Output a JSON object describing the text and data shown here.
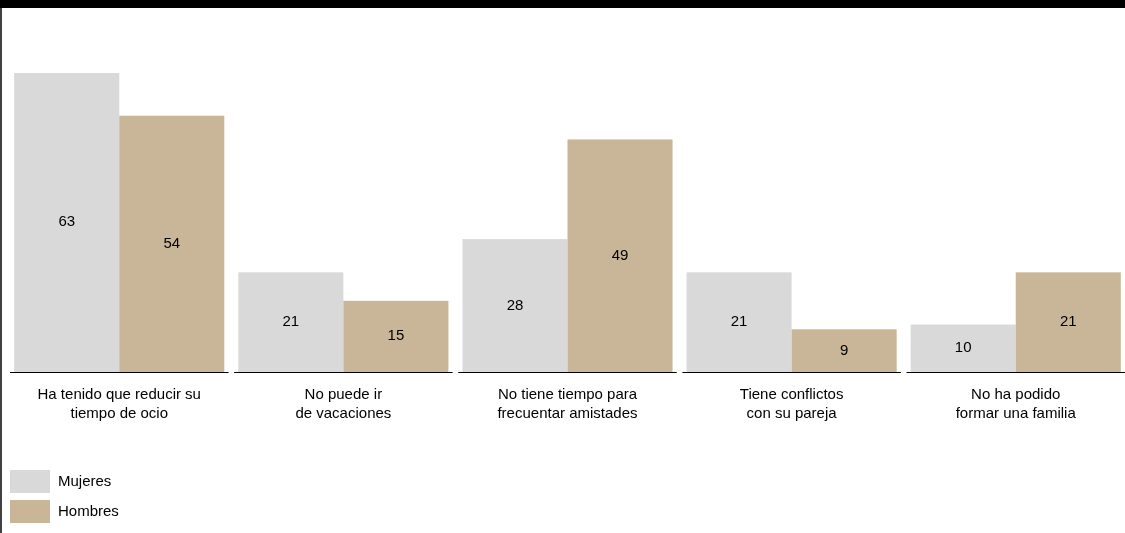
{
  "chart_data": {
    "type": "bar",
    "categories": [
      "Ha tenido que reducir su\ntiempo de ocio",
      "No puede ir\nde vacaciones",
      "No tiene tiempo para\nfrecuentar amistades",
      "Tiene conflictos\ncon su pareja",
      "No ha podido\nformar una familia"
    ],
    "series": [
      {
        "name": "Mujeres",
        "color": "#d9d9d9",
        "values": [
          63,
          21,
          28,
          21,
          10
        ]
      },
      {
        "name": "Hombres",
        "color": "#c9b698",
        "values": [
          54,
          15,
          49,
          9,
          21
        ]
      }
    ],
    "data_labels": true,
    "legend": "bottom left",
    "grid": false
  }
}
